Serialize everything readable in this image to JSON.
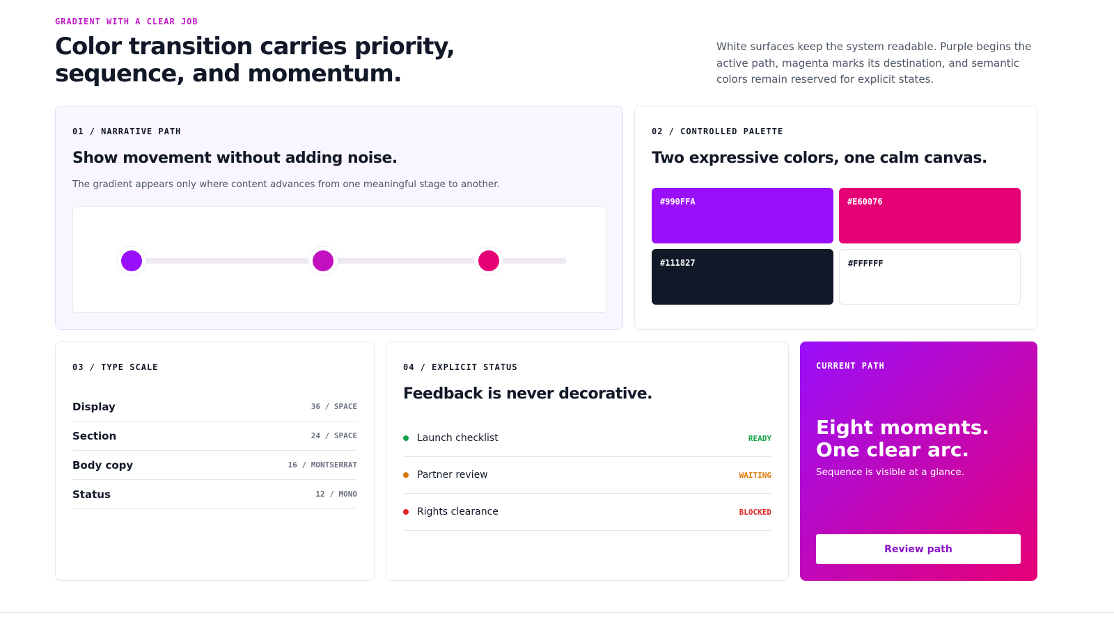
{
  "header": {
    "eyebrow": "GRADIENT WITH A CLEAR JOB",
    "title": "Color transition carries priority, sequence, and momentum.",
    "description": "White surfaces keep the system readable. Purple begins the active path, magenta marks its destination, and semantic colors remain reserved for explicit states."
  },
  "narrative": {
    "label": "01 / NARRATIVE PATH",
    "title": "Show movement without adding noise.",
    "body": "The gradient appears only where content advances from one meaningful stage to another."
  },
  "palette": {
    "label": "02 / CONTROLLED PALETTE",
    "title": "Two expressive colors, one calm canvas.",
    "swatches": [
      "#990FFA",
      "#E60076",
      "#111827",
      "#FFFFFF"
    ]
  },
  "type_scale": {
    "label": "03 / TYPE SCALE",
    "rows": [
      [
        "Display",
        "36 / SPACE"
      ],
      [
        "Section",
        "24 / SPACE"
      ],
      [
        "Body copy",
        "16 / MONTSERRAT"
      ],
      [
        "Status",
        "12 / MONO"
      ]
    ]
  },
  "status": {
    "label": "04 / EXPLICIT STATUS",
    "title": "Feedback is never decorative.",
    "items": [
      {
        "name": "Launch checklist",
        "state": "READY"
      },
      {
        "name": "Partner review",
        "state": "WAITING"
      },
      {
        "name": "Rights clearance",
        "state": "BLOCKED"
      }
    ]
  },
  "current": {
    "label": "CURRENT PATH",
    "title_lines": [
      "Eight moments.",
      "One clear arc."
    ],
    "body": "Sequence is visible at a glance.",
    "button": "Review path"
  }
}
